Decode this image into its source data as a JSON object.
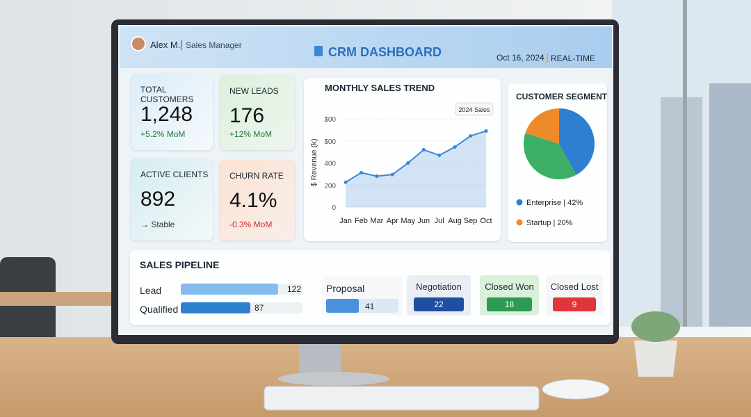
{
  "header": {
    "user": "Alex M.",
    "role": "Sales Manager",
    "title": "CRM DASHBOARD",
    "date": "Oct 16, 2024",
    "mode": "REAL-TIME"
  },
  "kpis": [
    {
      "label": "TOTAL CUSTOMERS",
      "value": "1,248",
      "change": "+5.2% MoM"
    },
    {
      "label": "NEW LEADS",
      "value": "176",
      "change": "+12% MoM"
    },
    {
      "label": "ACTIVE CLIENTS",
      "value": "892",
      "change": "→ Stable"
    },
    {
      "label": "CHURN RATE",
      "value": "4.1%",
      "change": "-0.3% MoM"
    }
  ],
  "chart_data": [
    {
      "type": "line",
      "title": "MONTHLY SALES TREND",
      "y_label": "$ Revenue (k)",
      "categories": [
        "Jan",
        "Feb",
        "Mar",
        "Apr",
        "May",
        "Jun",
        "Jul",
        "Aug",
        "Sep",
        "Oct"
      ],
      "series": [
        {
          "name": "2024 Sales",
          "color": "#3a86d4",
          "values": [
            225,
            312,
            280,
            295,
            400,
            520,
            470,
            545,
            645,
            690
          ]
        }
      ],
      "ylim": [
        0,
        800
      ],
      "yticks": [
        0,
        200,
        400,
        {
          "value": 600,
          "label": "$00"
        },
        {
          "value": 800,
          "label": "$00"
        }
      ],
      "grid": true
    },
    {
      "type": "pie",
      "title": "CUSTOMER SEGMENTS",
      "categories": [
        "Enterprise",
        null,
        "Startup"
      ],
      "values": [
        42,
        38,
        20
      ],
      "value_labels": [
        "Enterprise | 42%",
        null,
        "Startup | 20%"
      ],
      "colors": [
        "#2f7fd0",
        "#3cae66",
        "#ef8a2a"
      ]
    }
  ],
  "pipeline": {
    "title": "SALES PIPELINE",
    "stages": [
      {
        "name": "Lead",
        "value": 122
      },
      {
        "name": "Qualified",
        "value": 87
      },
      {
        "name": "Proposal",
        "value": 41
      },
      {
        "name": "Negotiation",
        "value": 22
      },
      {
        "name": "Closed Won",
        "value": 18
      },
      {
        "name": "Closed Lost",
        "value": 9
      }
    ]
  }
}
